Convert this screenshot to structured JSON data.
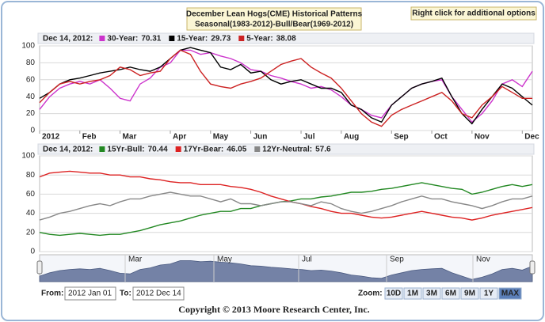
{
  "header": {
    "title_line1": "December Lean Hogs(CME) Historical Patterns",
    "title_line2": "Seasonal(1983-2012)-Bull/Bear(1969-2012)",
    "options_button": "Right click for additional options"
  },
  "chart_data": [
    {
      "type": "line",
      "header_date": "Dec 14, 2012:",
      "categories": [
        "2012",
        null,
        null,
        null,
        "Feb",
        null,
        null,
        null,
        "Mar",
        null,
        null,
        null,
        null,
        "Apr",
        null,
        null,
        null,
        "May",
        null,
        null,
        null,
        "Jun",
        null,
        null,
        null,
        null,
        "Jul",
        null,
        null,
        null,
        "Aug",
        null,
        null,
        null,
        null,
        "Sep",
        null,
        null,
        null,
        "Oct",
        null,
        null,
        null,
        "Nov",
        null,
        null,
        null,
        null,
        "Dec",
        null
      ],
      "ylim": [
        0,
        100
      ],
      "yticks": [
        0,
        20,
        40,
        60,
        80,
        100
      ],
      "grid": true,
      "series": [
        {
          "name": "30-Year:",
          "current": 70.31,
          "color": "#cc33cc",
          "values": [
            25,
            40,
            50,
            55,
            58,
            55,
            60,
            50,
            38,
            35,
            55,
            62,
            75,
            80,
            95,
            95,
            90,
            92,
            88,
            85,
            80,
            72,
            70,
            65,
            62,
            58,
            55,
            50,
            52,
            48,
            40,
            30,
            25,
            18,
            15,
            30,
            40,
            50,
            55,
            58,
            60,
            40,
            25,
            10,
            20,
            35,
            55,
            60,
            52,
            70
          ]
        },
        {
          "name": "15-Year:",
          "current": 29.73,
          "color": "#000000",
          "values": [
            38,
            45,
            55,
            60,
            62,
            65,
            68,
            70,
            72,
            75,
            72,
            70,
            75,
            85,
            95,
            98,
            95,
            92,
            75,
            72,
            78,
            68,
            70,
            60,
            55,
            58,
            60,
            55,
            50,
            50,
            45,
            30,
            25,
            15,
            10,
            30,
            40,
            50,
            55,
            58,
            62,
            40,
            20,
            8,
            25,
            40,
            55,
            50,
            40,
            30
          ]
        },
        {
          "name": "5-Year:",
          "current": 38.08,
          "color": "#cc2222",
          "values": [
            33,
            45,
            55,
            58,
            55,
            58,
            60,
            65,
            75,
            72,
            65,
            68,
            70,
            85,
            95,
            90,
            70,
            55,
            52,
            50,
            55,
            58,
            62,
            70,
            78,
            82,
            85,
            75,
            68,
            62,
            50,
            35,
            20,
            10,
            5,
            18,
            25,
            30,
            35,
            40,
            45,
            35,
            20,
            15,
            30,
            40,
            52,
            45,
            38,
            38
          ]
        }
      ]
    },
    {
      "type": "line",
      "header_date": "Dec 14, 2012:",
      "ylim": [
        0,
        100
      ],
      "yticks": [
        0,
        20,
        40,
        60,
        80,
        100
      ],
      "grid": true,
      "series": [
        {
          "name": "15Yr-Bull:",
          "current": 70.44,
          "color": "#228822",
          "values": [
            20,
            18,
            17,
            18,
            19,
            18,
            17,
            18,
            18,
            20,
            22,
            25,
            28,
            30,
            32,
            35,
            38,
            40,
            42,
            42,
            45,
            45,
            48,
            50,
            52,
            53,
            55,
            55,
            57,
            58,
            60,
            62,
            62,
            63,
            65,
            66,
            68,
            70,
            72,
            70,
            68,
            66,
            65,
            60,
            62,
            65,
            68,
            70,
            68,
            70
          ]
        },
        {
          "name": "17Yr-Bear:",
          "current": 46.05,
          "color": "#dd2222",
          "values": [
            78,
            82,
            83,
            84,
            83,
            82,
            82,
            80,
            80,
            78,
            78,
            76,
            75,
            73,
            72,
            72,
            70,
            70,
            70,
            68,
            67,
            65,
            62,
            58,
            55,
            52,
            50,
            47,
            45,
            42,
            40,
            40,
            38,
            36,
            35,
            36,
            38,
            40,
            42,
            40,
            38,
            36,
            35,
            33,
            35,
            38,
            40,
            42,
            44,
            46
          ]
        },
        {
          "name": "12Yr-Neutral:",
          "current": 57.6,
          "color": "#888888",
          "values": [
            33,
            36,
            40,
            42,
            45,
            48,
            50,
            48,
            52,
            55,
            55,
            58,
            60,
            62,
            60,
            58,
            58,
            55,
            52,
            55,
            50,
            50,
            48,
            50,
            52,
            52,
            50,
            48,
            52,
            50,
            45,
            42,
            40,
            42,
            45,
            48,
            52,
            55,
            58,
            55,
            55,
            52,
            50,
            48,
            45,
            48,
            52,
            55,
            55,
            58
          ]
        }
      ]
    }
  ],
  "navigator": {
    "labels": [
      "Mar",
      "May",
      "Jul",
      "Sep",
      "Nov"
    ]
  },
  "controls": {
    "from_label": "From:",
    "from_value": "2012 Jan 01",
    "to_label": "To:",
    "to_value": "2012 Dec 14",
    "zoom_label": "Zoom:",
    "zoom_buttons": [
      "10D",
      "1M",
      "3M",
      "6M",
      "9M",
      "1Y",
      "MAX"
    ]
  },
  "footer": {
    "copyright": "Copyright © 2013 Moore Research Center, Inc."
  }
}
